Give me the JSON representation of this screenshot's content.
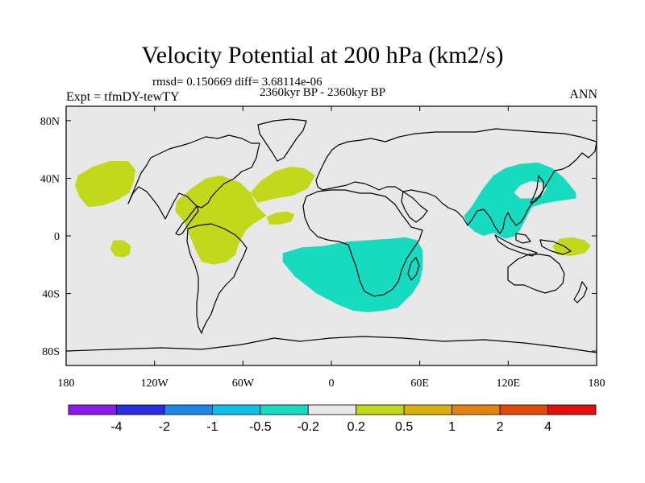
{
  "chart_data": {
    "type": "heatmap",
    "title": "Velocity Potential at 200 hPa (km2/s)",
    "stats_line": "rmsd= 0.150669 diff= 3.68114e-06",
    "period": "2360kyr BP - 2360kyr BP",
    "left_label": "Expt = tfmDY-tewTY",
    "right_label": "ANN",
    "x_ticks": [
      "180",
      "120W",
      "60W",
      "0",
      "60E",
      "120E",
      "180"
    ],
    "x_tick_values": [
      -180,
      -120,
      -60,
      0,
      60,
      120,
      180
    ],
    "y_ticks": [
      "80N",
      "40N",
      "0",
      "40S",
      "80S"
    ],
    "y_tick_values": [
      80,
      40,
      0,
      -40,
      -80
    ],
    "xlim": [
      -180,
      180
    ],
    "ylim": [
      -90,
      90
    ],
    "colorbar": {
      "labels": [
        "-4",
        "-2",
        "-1",
        "-0.5",
        "-0.2",
        "0.2",
        "0.5",
        "1",
        "2",
        "4"
      ],
      "colors": [
        "#8a1bea",
        "#2b2ee0",
        "#1f86e8",
        "#0fc0e6",
        "#17dbc0",
        "#e8e8e8",
        "#c2d81a",
        "#d9b00c",
        "#e0830f",
        "#e0480c",
        "#e60d0d"
      ]
    },
    "regions": [
      {
        "name": "negative-southern-africa",
        "level": "-0.5 to -0.2",
        "color": "#17dbc0",
        "points": [
          [
            -33,
            -12
          ],
          [
            -20,
            -8
          ],
          [
            -5,
            -7
          ],
          [
            10,
            -4
          ],
          [
            25,
            -3
          ],
          [
            40,
            -2
          ],
          [
            50,
            -1
          ],
          [
            58,
            -3
          ],
          [
            62,
            -10
          ],
          [
            62,
            -22
          ],
          [
            60,
            -32
          ],
          [
            55,
            -40
          ],
          [
            50,
            -45
          ],
          [
            45,
            -50
          ],
          [
            35,
            -52
          ],
          [
            25,
            -53
          ],
          [
            15,
            -52
          ],
          [
            5,
            -48
          ],
          [
            -10,
            -40
          ],
          [
            -25,
            -28
          ],
          [
            -33,
            -18
          ]
        ]
      },
      {
        "name": "negative-east-asia",
        "level": "-0.5 to -0.2",
        "color": "#17dbc0",
        "points": [
          [
            95,
            20
          ],
          [
            103,
            33
          ],
          [
            110,
            42
          ],
          [
            118,
            47
          ],
          [
            128,
            50
          ],
          [
            140,
            51
          ],
          [
            150,
            47
          ],
          [
            158,
            40
          ],
          [
            166,
            30
          ],
          [
            166,
            26
          ],
          [
            152,
            24
          ],
          [
            142,
            22
          ],
          [
            136,
            20
          ],
          [
            133,
            14
          ],
          [
            130,
            8
          ],
          [
            128,
            4
          ],
          [
            125,
            0
          ],
          [
            118,
            -2
          ],
          [
            110,
            2
          ],
          [
            103,
            0
          ],
          [
            97,
            3
          ],
          [
            92,
            8
          ],
          [
            90,
            14
          ]
        ]
      },
      {
        "name": "positive-north-pacific",
        "level": "0.2 to 0.5",
        "color": "#c2d81a",
        "points": [
          [
            -172,
            42
          ],
          [
            -162,
            48
          ],
          [
            -150,
            52
          ],
          [
            -138,
            52
          ],
          [
            -133,
            46
          ],
          [
            -134,
            38
          ],
          [
            -137,
            30
          ],
          [
            -145,
            25
          ],
          [
            -155,
            21
          ],
          [
            -165,
            20
          ],
          [
            -171,
            27
          ],
          [
            -174,
            35
          ]
        ]
      },
      {
        "name": "positive-central-pacific",
        "level": "0.2 to 0.5",
        "color": "#c2d81a",
        "points": [
          [
            -148,
            -3
          ],
          [
            -141,
            -3
          ],
          [
            -136,
            -7
          ],
          [
            -137,
            -13
          ],
          [
            -141,
            -15
          ],
          [
            -147,
            -14
          ],
          [
            -150,
            -9
          ]
        ]
      },
      {
        "name": "positive-americas",
        "level": "0.2 to 0.5",
        "color": "#c2d81a",
        "points": [
          [
            -105,
            24
          ],
          [
            -95,
            33
          ],
          [
            -85,
            40
          ],
          [
            -75,
            42
          ],
          [
            -62,
            37
          ],
          [
            -55,
            30
          ],
          [
            -50,
            20
          ],
          [
            -44,
            14
          ],
          [
            -52,
            9
          ],
          [
            -58,
            4
          ],
          [
            -63,
            -6
          ],
          [
            -65,
            -13
          ],
          [
            -71,
            -18
          ],
          [
            -80,
            -20
          ],
          [
            -88,
            -18
          ],
          [
            -92,
            -10
          ],
          [
            -96,
            0
          ],
          [
            -100,
            10
          ],
          [
            -106,
            17
          ]
        ]
      },
      {
        "name": "positive-atlantic",
        "level": "0.2 to 0.5",
        "color": "#c2d81a",
        "points": [
          [
            -55,
            30
          ],
          [
            -48,
            38
          ],
          [
            -38,
            45
          ],
          [
            -28,
            48
          ],
          [
            -18,
            47
          ],
          [
            -11,
            42
          ],
          [
            -16,
            33
          ],
          [
            -26,
            28
          ],
          [
            -38,
            26
          ],
          [
            -50,
            23
          ]
        ]
      },
      {
        "name": "positive-atlantic-small",
        "level": "0.2 to 0.5",
        "color": "#c2d81a",
        "points": [
          [
            -44,
            13
          ],
          [
            -38,
            16
          ],
          [
            -30,
            17
          ],
          [
            -25,
            15
          ],
          [
            -27,
            10
          ],
          [
            -35,
            8
          ],
          [
            -42,
            8
          ]
        ]
      },
      {
        "name": "positive-west-pacific",
        "level": "0.2 to 0.5",
        "color": "#c2d81a",
        "points": [
          [
            150,
            -7
          ],
          [
            155,
            -2
          ],
          [
            163,
            -1
          ],
          [
            172,
            -3
          ],
          [
            176,
            -7
          ],
          [
            172,
            -12
          ],
          [
            162,
            -14
          ],
          [
            153,
            -13
          ]
        ]
      },
      {
        "name": "neutral-japan-hole",
        "level": "-0.2 to 0.2",
        "color": "#e8e8e8",
        "points": [
          [
            124,
            30
          ],
          [
            128,
            35
          ],
          [
            135,
            38
          ],
          [
            143,
            37
          ],
          [
            146,
            33
          ],
          [
            143,
            28
          ],
          [
            135,
            26
          ],
          [
            128,
            26
          ]
        ]
      }
    ]
  }
}
